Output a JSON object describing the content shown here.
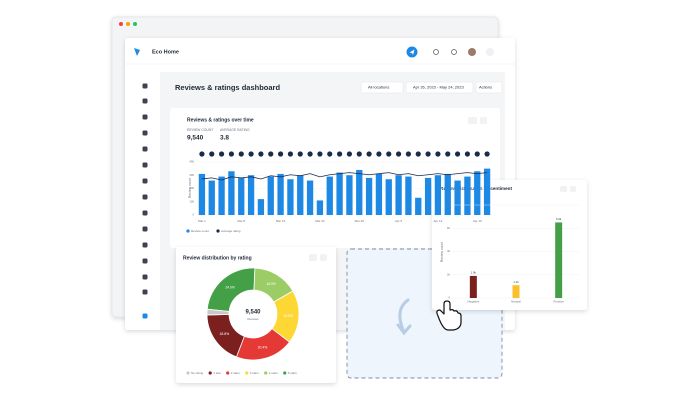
{
  "header": {
    "app_name": "Eco Home"
  },
  "page": {
    "title": "Reviews & ratings dashboard",
    "filters": {
      "location": "All locations",
      "date_range": "Apr 26, 2023 - May 24, 2023",
      "actions": "Actions"
    }
  },
  "chart_data": [
    {
      "type": "bar",
      "title": "Reviews & ratings over time",
      "stats": [
        {
          "label": "REVIEW COUNT",
          "value": "9,540"
        },
        {
          "label": "AVERAGE RATING",
          "value": "3.8"
        }
      ],
      "y_label": "Review count",
      "categories": [
        "Mar 1",
        null,
        null,
        null,
        "Mar 8",
        null,
        null,
        null,
        "Mar 15",
        null,
        null,
        null,
        "Mar 22",
        null,
        null,
        null,
        "Mar 29",
        null,
        null,
        null,
        "Apr 5",
        null,
        null,
        null,
        "Apr 12",
        null,
        null,
        null,
        "Apr 19",
        null
      ],
      "series": [
        {
          "name": "Review count",
          "color": "#1e88e5",
          "values": [
            310,
            260,
            290,
            330,
            280,
            300,
            120,
            290,
            310,
            270,
            300,
            260,
            110,
            290,
            320,
            300,
            340,
            280,
            310,
            270,
            300,
            290,
            130,
            280,
            300,
            310,
            260,
            290,
            330,
            350
          ]
        },
        {
          "name": "Average rating",
          "color": "#1a2b4c",
          "axis": "y2",
          "type": "line",
          "values": [
            3.4,
            3.5,
            3.3,
            3.6,
            3.5,
            3.6,
            3.4,
            3.7,
            3.6,
            3.8,
            3.7,
            3.9,
            3.6,
            3.8,
            3.9,
            4.0,
            3.9,
            3.8,
            3.9,
            4.0,
            3.8,
            3.9,
            3.7,
            3.8,
            3.9,
            3.8,
            3.9,
            4.0,
            3.9,
            4.0
          ]
        }
      ],
      "ylim": [
        0,
        400
      ],
      "yticks": [
        0,
        100,
        200,
        300,
        400
      ],
      "y2lim": [
        0,
        5
      ],
      "grid": true
    },
    {
      "type": "donut",
      "title": "Review distribution by rating",
      "center_value": "9,540",
      "center_label": "Reviews",
      "categories": [
        "No rating",
        "1 star",
        "2 stars",
        "3 stars",
        "4 stars",
        "5 stars"
      ],
      "colors": [
        "#c9c9c9",
        "#7b1f1f",
        "#e53935",
        "#fdd835",
        "#9ccc65",
        "#43a047"
      ],
      "values": [
        2.0,
        18.8,
        20.4,
        18.8,
        16.0,
        24.0
      ],
      "value_labels": [
        "2.0%",
        "18.8%",
        "20.4%",
        "18.8%",
        "16.0%",
        "24.0%"
      ]
    },
    {
      "type": "bar",
      "title": "Review distribution by sentiment",
      "y_label": "Review count",
      "categories": [
        "Negative",
        "Neutral",
        "Positive"
      ],
      "colors": [
        "#7b1f1f",
        "#fbc02d",
        "#43a047"
      ],
      "values": [
        1900,
        1100,
        6500
      ],
      "value_labels": [
        "1.9k",
        "1.1k",
        "6.5k"
      ],
      "ylim": [
        0,
        8000
      ],
      "yticks": [
        0,
        {
          "value": 2000,
          "label": "2k"
        },
        {
          "value": 4000,
          "label": "4k"
        },
        {
          "value": 6000,
          "label": "6k"
        },
        {
          "value": 8000,
          "label": "8k"
        }
      ],
      "grid": true
    }
  ]
}
